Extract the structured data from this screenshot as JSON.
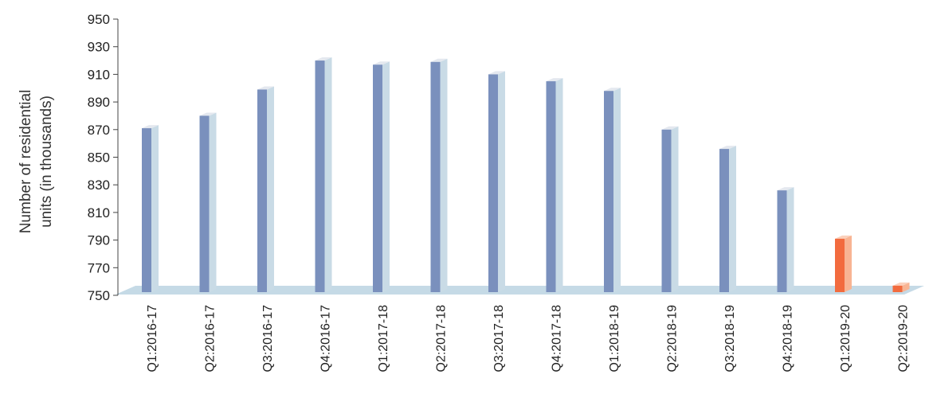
{
  "chart_data": {
    "type": "bar",
    "title": "",
    "xlabel": "",
    "ylabel_lines": [
      "Number of residential",
      "units (in thousands)"
    ],
    "ylim": [
      750,
      950
    ],
    "yticks": [
      750,
      770,
      790,
      810,
      830,
      850,
      870,
      890,
      910,
      930,
      950
    ],
    "categories": [
      "Q1:2016-17",
      "Q2:2016-17",
      "Q3:2016-17",
      "Q4:2016-17",
      "Q1:2017-18",
      "Q2:2017-18",
      "Q3:2017-18",
      "Q4:2017-18",
      "Q1:2018-19",
      "Q2:2018-19",
      "Q3:2018-19",
      "Q4:2018-19",
      "Q1:2019-20",
      "Q2:2019-20"
    ],
    "values": [
      871,
      880,
      899,
      920,
      917,
      919,
      910,
      905,
      898,
      870,
      856,
      826,
      791,
      757
    ],
    "bar_style": "3d",
    "grid": false,
    "colors": {
      "bar_front": "#7a90bd",
      "bar_side": "#c9dbe6",
      "bar_top": "#e4e8ef",
      "highlight_front": "#f26b3e",
      "highlight_side": "#f8b493",
      "highlight_top": "#fbd0bb",
      "floor": "#c5dae6",
      "axis": "#444444"
    },
    "highlight_categories": [
      "Q1:2019-20",
      "Q2:2019-20"
    ]
  }
}
